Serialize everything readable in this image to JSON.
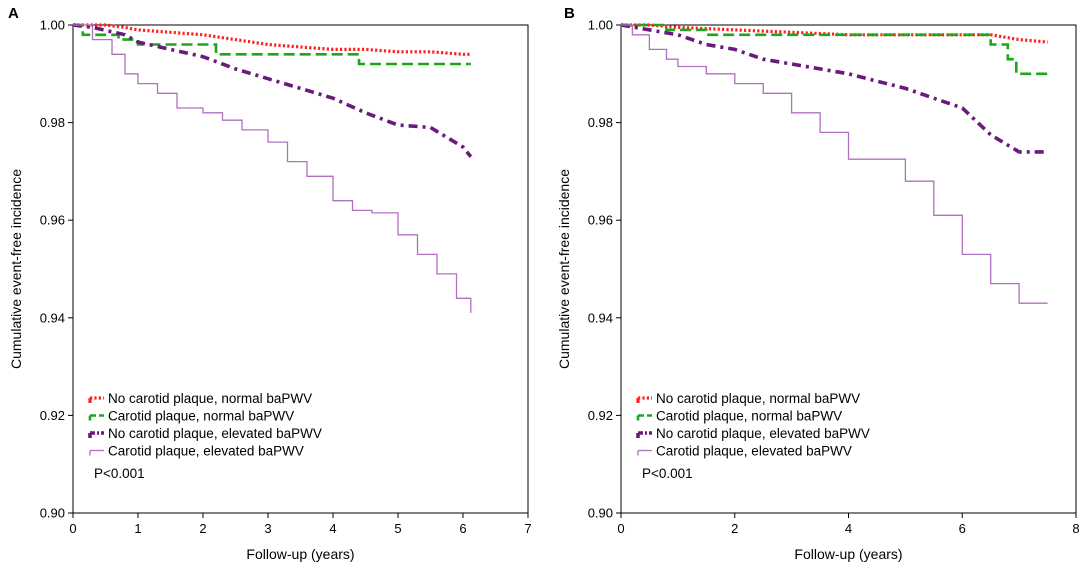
{
  "chart_data": [
    {
      "panel": "A",
      "type": "line",
      "title": "",
      "xlabel": "Follow-up (years)",
      "ylabel": "Cumulative event-free incidence",
      "xlim": [
        0,
        7
      ],
      "ylim": [
        0.9,
        1.0
      ],
      "xticks": [
        0,
        1,
        2,
        3,
        4,
        5,
        6,
        7
      ],
      "xtick_labels": [
        "0",
        "1",
        "2",
        "3",
        "4",
        "5",
        "6",
        "7"
      ],
      "yticks": [
        0.9,
        0.92,
        0.94,
        0.96,
        0.98,
        1.0
      ],
      "ytick_labels": [
        "0.90",
        "0.92",
        "0.94",
        "0.96",
        "0.98",
        "1.00"
      ],
      "legend_position": "bottom-left",
      "annotation": "P<0.001",
      "series": [
        {
          "name": "No carotid plaque, normal baPWV",
          "color": "#ff2020",
          "style": "dotted",
          "x": [
            0,
            0.5,
            0.8,
            1.0,
            1.5,
            2.0,
            2.5,
            3.0,
            3.5,
            4.0,
            4.5,
            5.0,
            5.5,
            6.0,
            6.12
          ],
          "y": [
            1.0,
            1.0,
            0.9995,
            0.999,
            0.9985,
            0.998,
            0.997,
            0.996,
            0.9955,
            0.995,
            0.995,
            0.9945,
            0.9945,
            0.994,
            0.994
          ]
        },
        {
          "name": "Carotid plaque, normal baPWV",
          "color": "#1aa81a",
          "style": "dashed",
          "x": [
            0,
            0.15,
            0.7,
            1.0,
            2.2,
            2.6,
            4.4,
            6.12
          ],
          "y": [
            1.0,
            0.998,
            0.997,
            0.996,
            0.994,
            0.994,
            0.992,
            0.992
          ],
          "step": true
        },
        {
          "name": "No carotid plaque, elevated baPWV",
          "color": "#6a1a7a",
          "style": "dashdot",
          "x": [
            0,
            0.3,
            0.8,
            1.0,
            1.5,
            2.0,
            2.5,
            3.0,
            3.5,
            4.0,
            4.5,
            5.0,
            5.5,
            6.0,
            6.12
          ],
          "y": [
            1.0,
            0.9995,
            0.998,
            0.9965,
            0.995,
            0.9935,
            0.991,
            0.989,
            0.987,
            0.985,
            0.982,
            0.9795,
            0.979,
            0.975,
            0.973
          ]
        },
        {
          "name": "Carotid plaque, elevated baPWV",
          "color": "#b070c0",
          "style": "solid",
          "x": [
            0,
            0.3,
            0.6,
            0.8,
            1.0,
            1.3,
            1.6,
            2.0,
            2.3,
            2.6,
            3.0,
            3.3,
            3.6,
            4.0,
            4.3,
            4.6,
            5.0,
            5.3,
            5.6,
            5.9,
            6.12
          ],
          "y": [
            1.0,
            0.997,
            0.994,
            0.99,
            0.988,
            0.986,
            0.983,
            0.982,
            0.9805,
            0.9785,
            0.976,
            0.972,
            0.969,
            0.964,
            0.962,
            0.9615,
            0.957,
            0.953,
            0.949,
            0.944,
            0.941
          ],
          "step": true
        }
      ]
    },
    {
      "panel": "B",
      "type": "line",
      "title": "",
      "xlabel": "Follow-up (years)",
      "ylabel": "Cumulative event-free incidence",
      "xlim": [
        0,
        8
      ],
      "ylim": [
        0.9,
        1.0
      ],
      "xticks": [
        0,
        2,
        4,
        6,
        8
      ],
      "xtick_labels": [
        "0",
        "2",
        "4",
        "6",
        "8"
      ],
      "yticks": [
        0.9,
        0.92,
        0.94,
        0.96,
        0.98,
        1.0
      ],
      "ytick_labels": [
        "0.90",
        "0.92",
        "0.94",
        "0.96",
        "0.98",
        "1.00"
      ],
      "legend_position": "bottom-left",
      "annotation": "P<0.001",
      "series": [
        {
          "name": "No carotid plaque, normal baPWV",
          "color": "#ff2020",
          "style": "dotted",
          "x": [
            0,
            0.5,
            1.0,
            2.0,
            3.0,
            4.0,
            5.0,
            6.0,
            6.5,
            7.0,
            7.5
          ],
          "y": [
            1.0,
            1.0,
            0.9995,
            0.999,
            0.9985,
            0.998,
            0.998,
            0.998,
            0.998,
            0.997,
            0.9965
          ]
        },
        {
          "name": "Carotid plaque, normal baPWV",
          "color": "#1aa81a",
          "style": "dashed",
          "x": [
            0,
            0.8,
            1.5,
            5.0,
            5.5,
            6.5,
            6.8,
            6.95,
            7.5
          ],
          "y": [
            1.0,
            0.999,
            0.998,
            0.998,
            0.998,
            0.996,
            0.993,
            0.99,
            0.99
          ],
          "step": true
        },
        {
          "name": "No carotid plaque, elevated baPWV",
          "color": "#6a1a7a",
          "style": "dashdot",
          "x": [
            0,
            0.5,
            1.0,
            1.5,
            2.0,
            2.5,
            3.0,
            3.5,
            4.0,
            4.5,
            5.0,
            5.5,
            6.0,
            6.5,
            7.0,
            7.5
          ],
          "y": [
            1.0,
            0.999,
            0.998,
            0.996,
            0.995,
            0.993,
            0.992,
            0.991,
            0.99,
            0.9885,
            0.987,
            0.985,
            0.983,
            0.9775,
            0.974,
            0.974
          ]
        },
        {
          "name": "Carotid plaque, elevated baPWV",
          "color": "#b070c0",
          "style": "solid",
          "x": [
            0,
            0.2,
            0.5,
            0.8,
            1.0,
            1.5,
            2.0,
            2.5,
            3.0,
            3.5,
            4.0,
            4.5,
            5.0,
            5.5,
            6.0,
            6.5,
            7.0,
            7.5
          ],
          "y": [
            1.0,
            0.998,
            0.995,
            0.993,
            0.9915,
            0.99,
            0.988,
            0.986,
            0.982,
            0.978,
            0.9725,
            0.9725,
            0.968,
            0.961,
            0.953,
            0.947,
            0.943,
            0.943
          ],
          "step": true
        }
      ]
    }
  ]
}
